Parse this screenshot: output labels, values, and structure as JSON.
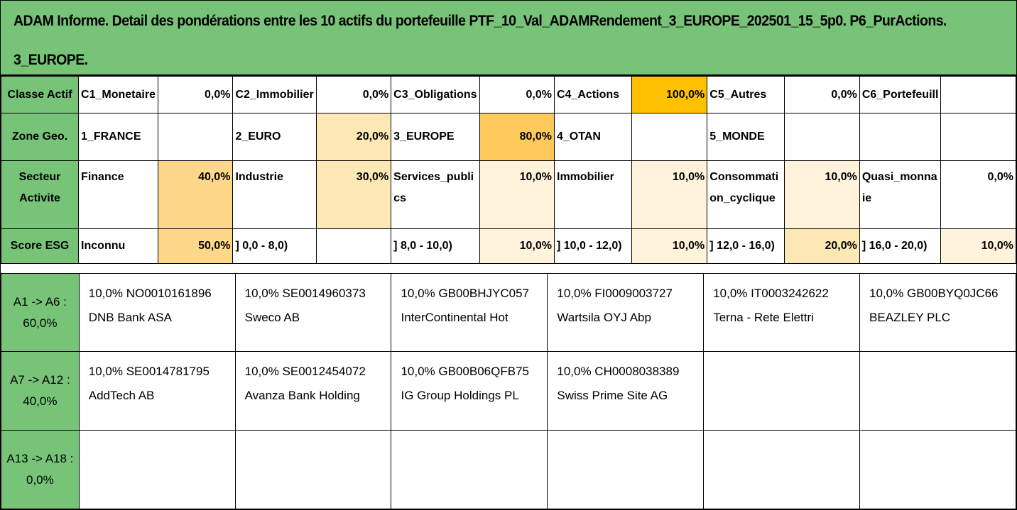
{
  "title": {
    "line1": "ADAM Informe. Detail des pondérations entre les 10 actifs du portefeuille PTF_10_Val_ADAMRendement_3_EUROPE_202501_15_5p0. P6_PurActions.",
    "line2": "3_EUROPE."
  },
  "rows": [
    {
      "header": "Classe Actif",
      "cells": [
        {
          "name": "C1_Monetaire",
          "pct": "0,0%"
        },
        {
          "name": "C2_Immobilier",
          "pct": "0,0%"
        },
        {
          "name": "C3_Obligations",
          "pct": "0,0%"
        },
        {
          "name": "C4_Actions",
          "pct": "100,0%"
        },
        {
          "name": "C5_Autres",
          "pct": "0,0%"
        },
        {
          "name": "C6_Portefeuill",
          "pct": ""
        }
      ]
    },
    {
      "header": "Zone Geo.",
      "cells": [
        {
          "name": "1_FRANCE",
          "pct": ""
        },
        {
          "name": "2_EURO",
          "pct": "20,0%"
        },
        {
          "name": "3_EUROPE",
          "pct": "80,0%"
        },
        {
          "name": "4_OTAN",
          "pct": ""
        },
        {
          "name": "5_MONDE",
          "pct": ""
        },
        {
          "name": "",
          "pct": ""
        }
      ]
    },
    {
      "header": "Secteur Activite",
      "cells": [
        {
          "name": "Finance",
          "pct": "40,0%"
        },
        {
          "name": "Industrie",
          "pct": "30,0%"
        },
        {
          "name": "Services_publics",
          "pct": "10,0%"
        },
        {
          "name": "Immobilier",
          "pct": "10,0%"
        },
        {
          "name": "Consommation_cyclique",
          "pct": "10,0%"
        },
        {
          "name": "Quasi_monnaie",
          "pct": "0,0%"
        }
      ]
    },
    {
      "header": "Score ESG",
      "cells": [
        {
          "name": "Inconnu",
          "pct": "50,0%"
        },
        {
          "name": "] 0,0 - 8,0)",
          "pct": ""
        },
        {
          "name": "] 8,0 - 10,0)",
          "pct": "10,0%"
        },
        {
          "name": "] 10,0 - 12,0)",
          "pct": "10,0%"
        },
        {
          "name": "] 12,0 - 16,0)",
          "pct": "20,0%"
        },
        {
          "name": "] 16,0 - 20,0)",
          "pct": "10,0%"
        }
      ]
    }
  ],
  "asset_rows": [
    {
      "label": "A1 -> A6 :",
      "total": "60,0%",
      "assets": [
        {
          "weight": "10,0%",
          "isin": "NO0010161896",
          "name": "DNB Bank ASA"
        },
        {
          "weight": "10,0%",
          "isin": "SE0014960373",
          "name": "Sweco AB"
        },
        {
          "weight": "10,0%",
          "isin": "GB00BHJYC057",
          "name": "InterContinental Hot"
        },
        {
          "weight": "10,0%",
          "isin": "FI0009003727",
          "name": "Wartsila OYJ Abp"
        },
        {
          "weight": "10,0%",
          "isin": "IT0003242622",
          "name": "Terna - Rete Elettri"
        },
        {
          "weight": "10,0%",
          "isin": "GB00BYQ0JC66",
          "name": "BEAZLEY PLC"
        }
      ]
    },
    {
      "label": "A7 -> A12 :",
      "total": "40,0%",
      "assets": [
        {
          "weight": "10,0%",
          "isin": "SE0014781795",
          "name": "AddTech AB"
        },
        {
          "weight": "10,0%",
          "isin": "SE0012454072",
          "name": "Avanza Bank Holding"
        },
        {
          "weight": "10,0%",
          "isin": "GB00B06QFB75",
          "name": "IG Group Holdings PL"
        },
        {
          "weight": "10,0%",
          "isin": "CH0008038389",
          "name": "Swiss Prime Site AG"
        }
      ]
    },
    {
      "label": "A13 -> A18 :",
      "total": "0,0%",
      "assets": []
    }
  ],
  "colors": {
    "header_green": "#77c479",
    "highlight_max": "#ffc000",
    "highlight_light": "#fff3dc"
  }
}
